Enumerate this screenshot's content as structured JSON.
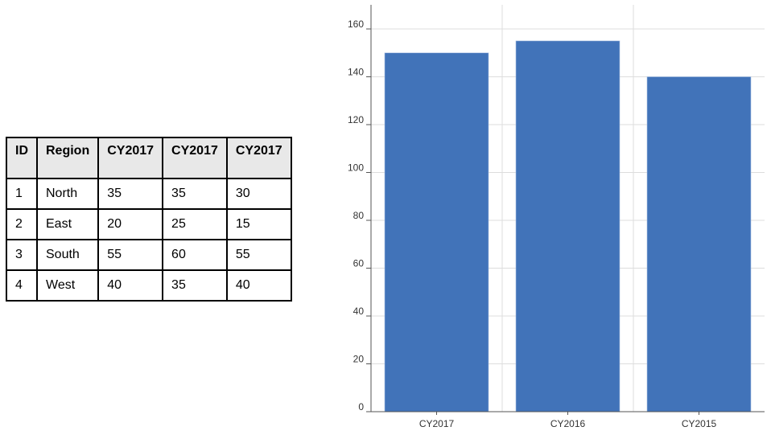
{
  "table": {
    "headers": [
      "ID",
      "Region",
      "CY2017",
      "CY2017",
      "CY2017"
    ],
    "rows": [
      [
        "1",
        "North",
        "35",
        "35",
        "30"
      ],
      [
        "2",
        "East",
        "20",
        "25",
        "15"
      ],
      [
        "3",
        "South",
        "55",
        "60",
        "55"
      ],
      [
        "4",
        "West",
        "40",
        "35",
        "40"
      ]
    ]
  },
  "chart_data": {
    "type": "bar",
    "categories": [
      "CY2017",
      "CY2016",
      "CY2015"
    ],
    "values": [
      150,
      155,
      140
    ],
    "title": "",
    "xlabel": "",
    "ylabel": "",
    "ylim": [
      0,
      170
    ],
    "yticks": [
      0,
      20,
      40,
      60,
      80,
      100,
      120,
      140,
      160
    ],
    "grid": true,
    "bar_color": "#4173b9"
  }
}
